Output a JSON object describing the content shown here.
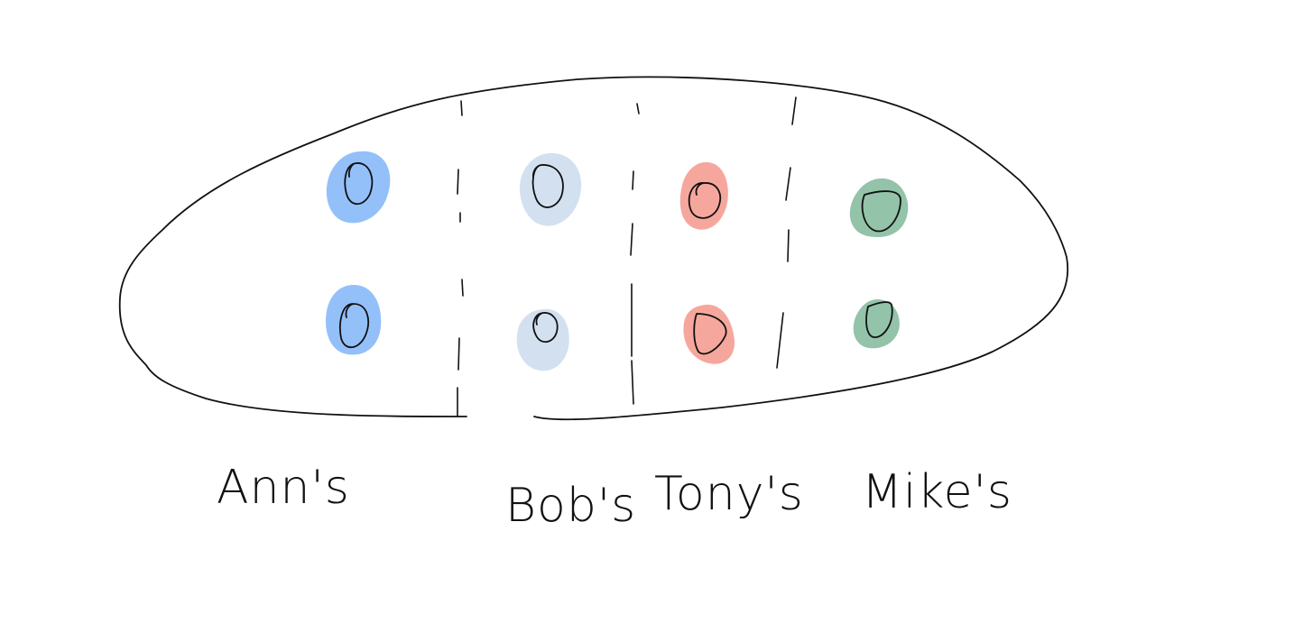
{
  "colors": {
    "ann": "#94c0fa",
    "bob": "#d3e0f0",
    "tony": "#f6a79d",
    "mike": "#93c3a9",
    "ink": "#111111"
  },
  "groups": [
    {
      "label": "Ann's",
      "color": "#94c0fa",
      "items": 2
    },
    {
      "label": "Bob's",
      "color": "#d3e0f0",
      "items": 2
    },
    {
      "label": "Tony's",
      "color": "#f6a79d",
      "items": 2
    },
    {
      "label": "Mike's",
      "color": "#93c3a9",
      "items": 2
    }
  ]
}
